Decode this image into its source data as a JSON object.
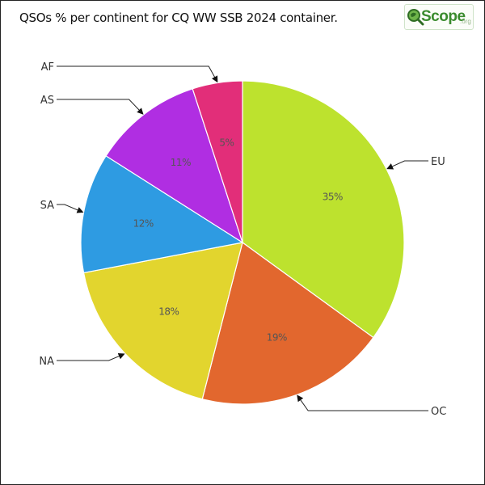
{
  "title": "QSOs % per continent for CQ WW SSB 2024 container.",
  "logo": {
    "name": "Scope",
    "suffix": ".org",
    "icon": "magnifier-globe-icon"
  },
  "chart_data": {
    "type": "pie",
    "title": "QSOs % per continent for CQ WW SSB 2024 container.",
    "start_angle_deg": 0,
    "direction": "clockwise",
    "slices": [
      {
        "label": "EU",
        "value": 35,
        "display": "35%",
        "color": "#bde22e"
      },
      {
        "label": "OC",
        "value": 19,
        "display": "19%",
        "color": "#e2672e"
      },
      {
        "label": "NA",
        "value": 18,
        "display": "18%",
        "color": "#e2d52e"
      },
      {
        "label": "SA",
        "value": 12,
        "display": "12%",
        "color": "#2e9be2"
      },
      {
        "label": "AS",
        "value": 11,
        "display": "11%",
        "color": "#b02ee2"
      },
      {
        "label": "AF",
        "value": 5,
        "display": "5%",
        "color": "#e22e79"
      }
    ]
  }
}
